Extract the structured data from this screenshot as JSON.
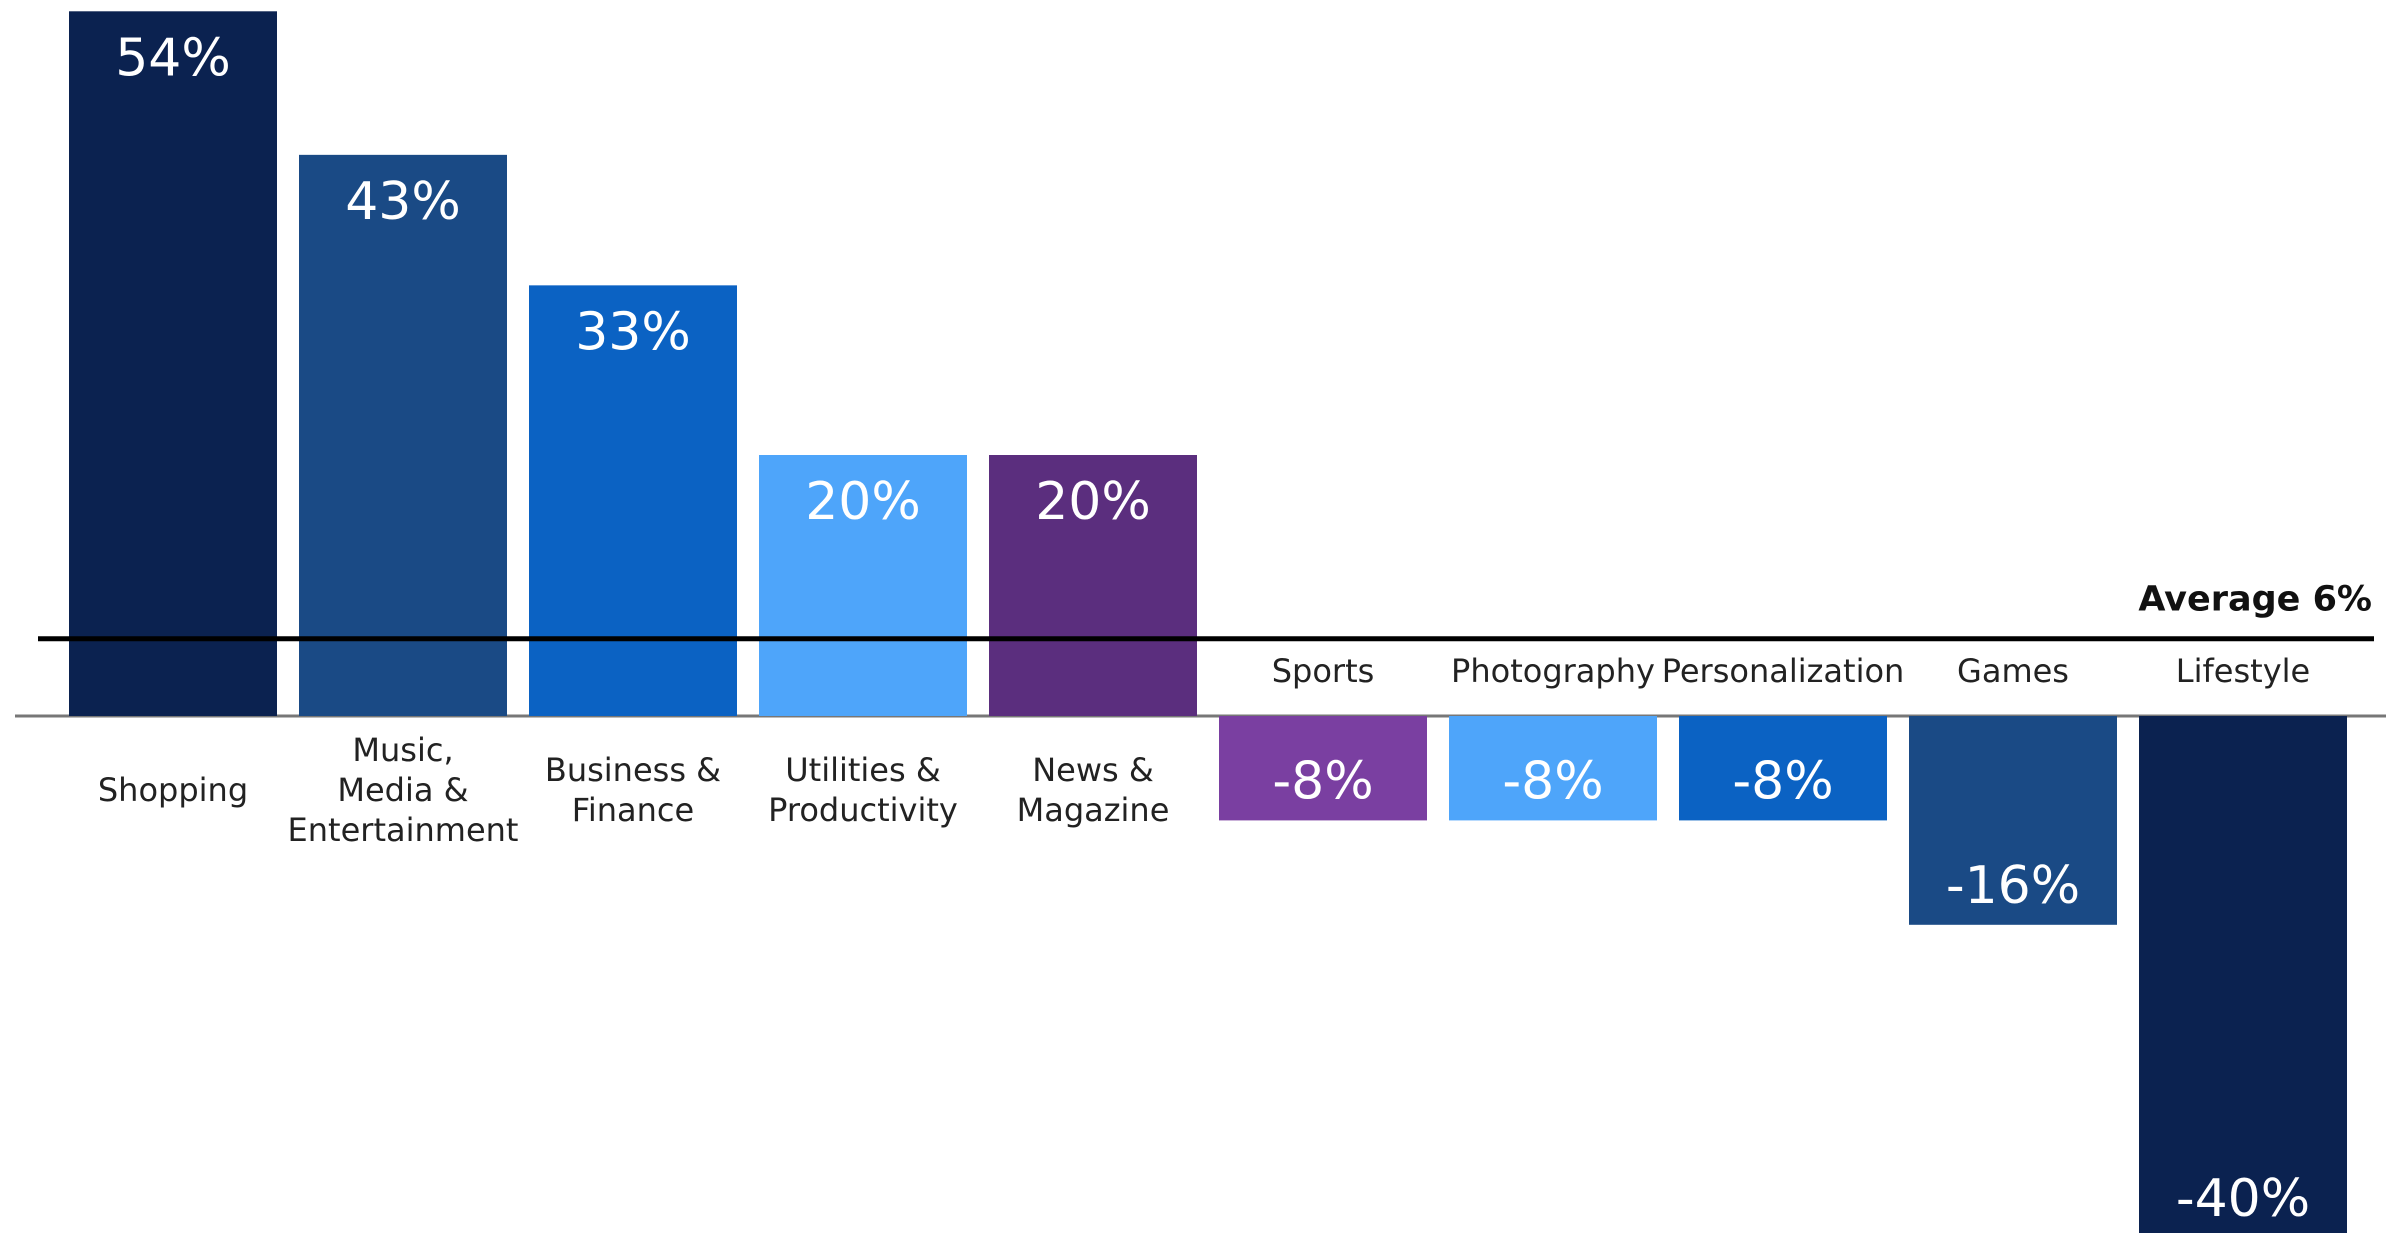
{
  "chart_data": {
    "type": "bar",
    "categories": [
      "Shopping",
      "Music, Media & Entertainment",
      "Business & Finance",
      "Utilities & Productivity",
      "News & Magazine",
      "Sports",
      "Photography",
      "Personalization",
      "Games",
      "Lifestyle"
    ],
    "category_lines": [
      [
        "Shopping"
      ],
      [
        "Music,",
        "Media &",
        "Entertainment"
      ],
      [
        "Business &",
        "Finance"
      ],
      [
        "Utilities &",
        "Productivity"
      ],
      [
        "News &",
        "Magazine"
      ],
      [
        "Sports"
      ],
      [
        "Photography"
      ],
      [
        "Personalization"
      ],
      [
        "Games"
      ],
      [
        "Lifestyle"
      ]
    ],
    "values": [
      54,
      43,
      33,
      20,
      20,
      -8,
      -8,
      -8,
      -16,
      -40
    ],
    "value_labels": [
      "54%",
      "43%",
      "33%",
      "20%",
      "20%",
      "-8%",
      "-8%",
      "-8%",
      "-16%",
      "-40%"
    ],
    "colors": [
      "#0B2250",
      "#1A4A85",
      "#0B62C3",
      "#4EA5FA",
      "#5B2E7E",
      "#7A3FA1",
      "#4EA5FA",
      "#0B62C3",
      "#1A4A85",
      "#0B2250"
    ],
    "average": {
      "value": 6,
      "label": "Average 6%"
    },
    "title": "",
    "xlabel": "",
    "ylabel": "",
    "ylim": [
      -40,
      54
    ],
    "grid": false,
    "legend": "none"
  }
}
